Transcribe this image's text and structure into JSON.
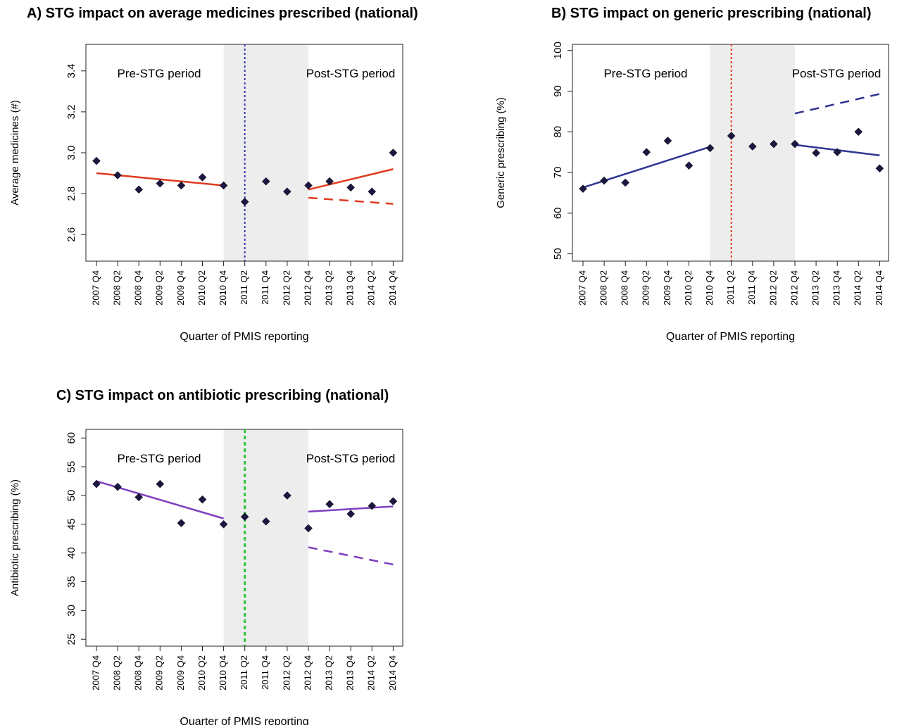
{
  "chart_data": [
    {
      "type": "scatter",
      "title": "A) STG impact on average medicines prescribed (national)",
      "xlabel": "Quarter of PMIS reporting",
      "ylabel": "Average medicines (#)",
      "categories": [
        "2007 Q4",
        "2008 Q2",
        "2008 Q4",
        "2009 Q2",
        "2009 Q4",
        "2010 Q2",
        "2010 Q4",
        "2011 Q2",
        "2011 Q4",
        "2012 Q2",
        "2012 Q4",
        "2013 Q2",
        "2013 Q4",
        "2014 Q2",
        "2014 Q4"
      ],
      "values": [
        2.96,
        2.89,
        2.82,
        2.85,
        2.84,
        2.88,
        2.84,
        2.76,
        2.86,
        2.81,
        2.84,
        2.86,
        2.83,
        2.81,
        3.0
      ],
      "ylim": [
        2.47,
        3.53
      ],
      "yticks": [
        2.6,
        2.8,
        3.0,
        3.2,
        3.4
      ],
      "ytick_labels": [
        "2.6",
        "2.8",
        "3.0",
        "3.2",
        "3.4"
      ],
      "shaded_region": [
        "2010 Q4",
        "2012 Q4"
      ],
      "intervention": "2011 Q2",
      "vline_style": "dotted",
      "vline_color": "#3a3ab4",
      "line_color": "#e03a21",
      "marker_color": "#1b1740",
      "pre_trend": {
        "x": [
          "2007 Q4",
          "2010 Q4"
        ],
        "y": [
          2.9,
          2.84
        ]
      },
      "post_trend": {
        "x": [
          "2012 Q4",
          "2014 Q4"
        ],
        "y": [
          2.82,
          2.92
        ]
      },
      "counterfactual": {
        "x": [
          "2012 Q4",
          "2014 Q4"
        ],
        "y": [
          2.78,
          2.75
        ]
      },
      "annotations": [
        "Pre-STG period",
        "Post-STG period"
      ],
      "grid": false
    },
    {
      "type": "scatter",
      "title": "B) STG impact on generic prescribing (national)",
      "xlabel": "Quarter of PMIS reporting",
      "ylabel": "Generic prescribing (%)",
      "categories": [
        "2007 Q4",
        "2008 Q2",
        "2008 Q4",
        "2009 Q2",
        "2009 Q4",
        "2010 Q2",
        "2010 Q4",
        "2011 Q2",
        "2011 Q4",
        "2012 Q2",
        "2012 Q4",
        "2013 Q2",
        "2013 Q4",
        "2014 Q2",
        "2014 Q4"
      ],
      "values": [
        66,
        68,
        67.5,
        75,
        77.8,
        71.7,
        76,
        79,
        76.4,
        77,
        77,
        74.8,
        75,
        80,
        71
      ],
      "ylim": [
        48.2,
        101.5
      ],
      "yticks": [
        50,
        60,
        70,
        80,
        90,
        100
      ],
      "ytick_labels": [
        "50",
        "60",
        "70",
        "80",
        "90",
        "100"
      ],
      "shaded_region": [
        "2010 Q4",
        "2012 Q4"
      ],
      "intervention": "2011 Q2",
      "vline_style": "dotted",
      "vline_color": "#e03a21",
      "line_color": "#2e3592",
      "marker_color": "#1b1740",
      "pre_trend": {
        "x": [
          "2007 Q4",
          "2010 Q4"
        ],
        "y": [
          66.3,
          76.3
        ]
      },
      "post_trend": {
        "x": [
          "2012 Q4",
          "2014 Q4"
        ],
        "y": [
          76.8,
          74.2
        ]
      },
      "counterfactual": {
        "x": [
          "2012 Q4",
          "2014 Q4"
        ],
        "y": [
          84.5,
          89.3
        ]
      },
      "annotations": [
        "Pre-STG period",
        "Post-STG period"
      ],
      "grid": false
    },
    {
      "type": "scatter",
      "title": "C) STG impact on antibiotic prescribing (national)",
      "xlabel": "Quarter of PMIS reporting",
      "ylabel": "Antibiotic prescribing (%)",
      "categories": [
        "2007 Q4",
        "2008 Q2",
        "2008 Q4",
        "2009 Q2",
        "2009 Q4",
        "2010 Q2",
        "2010 Q4",
        "2011 Q2",
        "2011 Q4",
        "2012 Q2",
        "2012 Q4",
        "2013 Q2",
        "2013 Q4",
        "2014 Q2",
        "2014 Q4"
      ],
      "values": [
        52,
        51.5,
        49.7,
        52,
        45.2,
        49.3,
        45,
        46.3,
        45.5,
        50,
        44.3,
        48.5,
        46.8,
        48.2,
        49
      ],
      "ylim": [
        23.8,
        61.5
      ],
      "yticks": [
        25,
        30,
        35,
        40,
        45,
        50,
        55,
        60
      ],
      "ytick_labels": [
        "25",
        "30",
        "35",
        "40",
        "45",
        "50",
        "55",
        "60"
      ],
      "shaded_region": [
        "2010 Q4",
        "2012 Q4"
      ],
      "intervention": "2011 Q2",
      "vline_style": "dotted",
      "vline_color": "#2ec43a",
      "line_color": "#7f3fbf",
      "marker_color": "#1b1740",
      "pre_trend": {
        "x": [
          "2007 Q4",
          "2010 Q4"
        ],
        "y": [
          52.5,
          46
        ]
      },
      "post_trend": {
        "x": [
          "2012 Q4",
          "2014 Q4"
        ],
        "y": [
          47.2,
          48.1
        ]
      },
      "counterfactual": {
        "x": [
          "2012 Q4",
          "2014 Q4"
        ],
        "y": [
          41,
          38
        ]
      },
      "annotations": [
        "Pre-STG period",
        "Post-STG period"
      ],
      "grid": false
    }
  ]
}
